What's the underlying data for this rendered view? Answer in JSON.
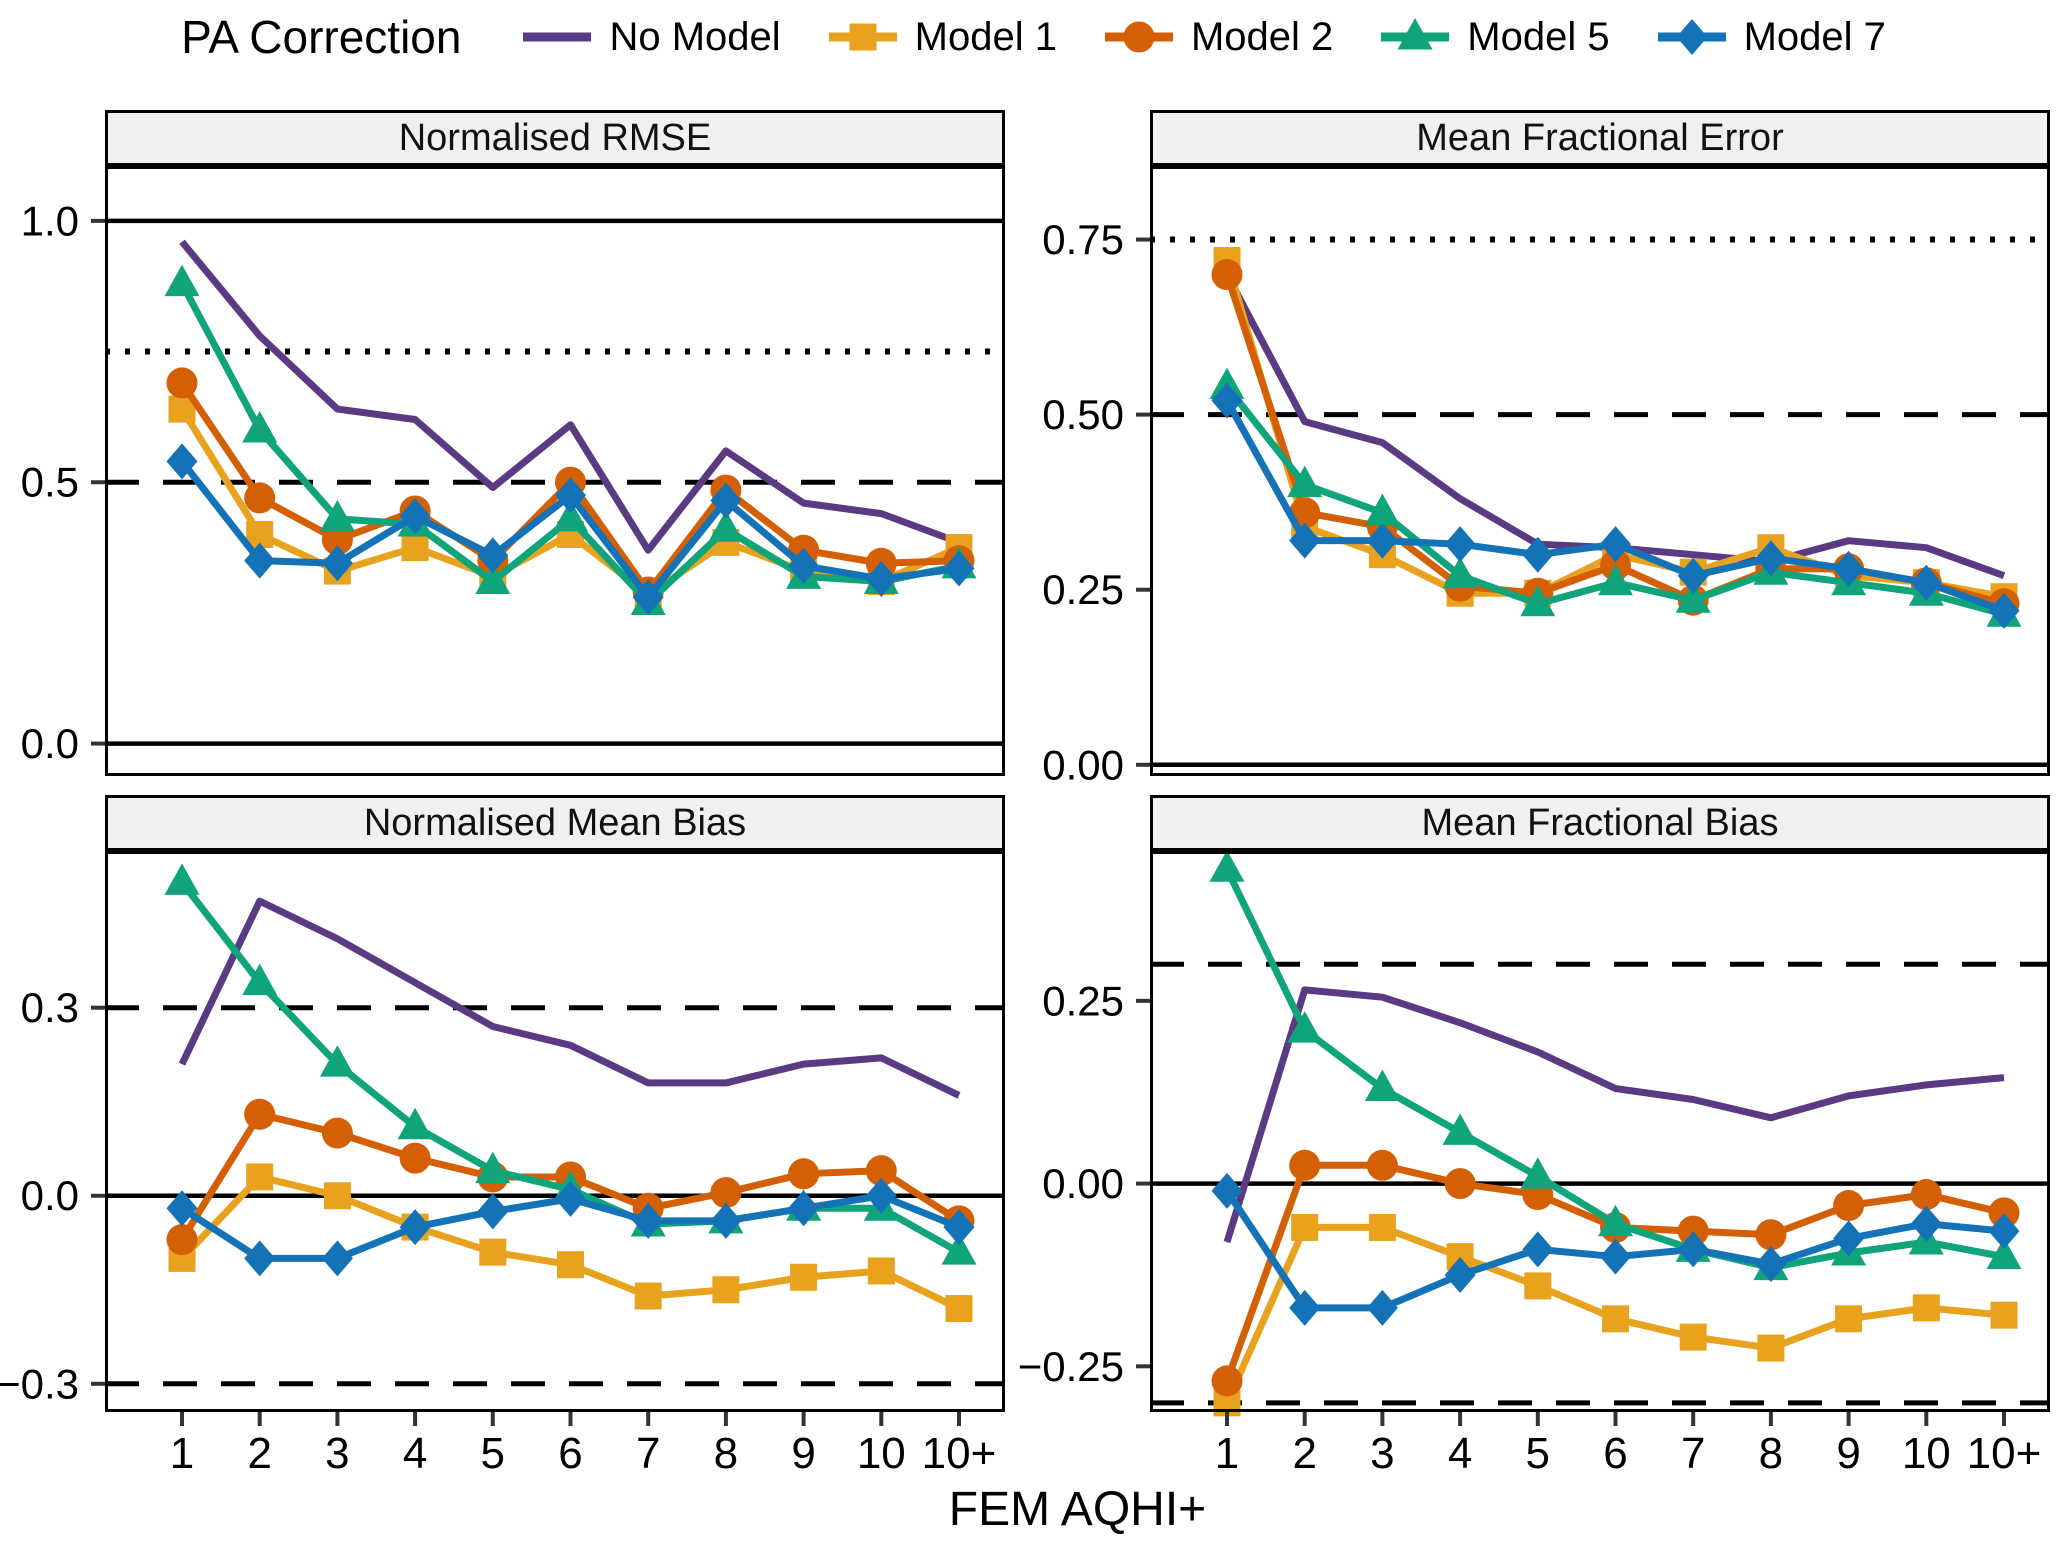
{
  "legend": {
    "title": "PA Correction",
    "items": [
      {
        "label": "No Model",
        "color": "#5A3A82",
        "marker": "line"
      },
      {
        "label": "Model 1",
        "color": "#E9A21E",
        "marker": "square"
      },
      {
        "label": "Model 2",
        "color": "#D55F05",
        "marker": "circle"
      },
      {
        "label": "Model 5",
        "color": "#0FA47A",
        "marker": "triangle"
      },
      {
        "label": "Model 7",
        "color": "#1472B7",
        "marker": "diamond"
      }
    ]
  },
  "axes": {
    "x_title": "FEM AQHI+",
    "x_ticks": [
      "1",
      "2",
      "3",
      "4",
      "5",
      "6",
      "7",
      "8",
      "9",
      "10",
      "10+"
    ]
  },
  "chart_data": [
    {
      "type": "line",
      "title": "Normalised RMSE",
      "ylim": [
        -0.062,
        1.105
      ],
      "grid": false,
      "legend_position": "top",
      "y_ticks": [
        {
          "v": 1.0,
          "label": "1.0"
        },
        {
          "v": 0.5,
          "label": "0.5"
        },
        {
          "v": 0.0,
          "label": "0.0"
        }
      ],
      "ref_lines": [
        {
          "v": 1.0,
          "style": "solid"
        },
        {
          "v": 0.75,
          "style": "dotted"
        },
        {
          "v": 0.5,
          "style": "dashed"
        },
        {
          "v": 0.0,
          "style": "solid"
        }
      ],
      "series": [
        {
          "name": "No Model",
          "values": [
            0.96,
            0.78,
            0.64,
            0.62,
            0.49,
            0.61,
            0.37,
            0.56,
            0.46,
            0.44,
            0.385
          ]
        },
        {
          "name": "Model 1",
          "values": [
            0.64,
            0.4,
            0.33,
            0.375,
            0.32,
            0.4,
            0.285,
            0.385,
            0.33,
            0.31,
            0.375
          ]
        },
        {
          "name": "Model 2",
          "values": [
            0.69,
            0.47,
            0.39,
            0.445,
            0.35,
            0.5,
            0.29,
            0.485,
            0.37,
            0.345,
            0.35
          ]
        },
        {
          "name": "Model 5",
          "values": [
            0.88,
            0.6,
            0.43,
            0.42,
            0.31,
            0.43,
            0.27,
            0.41,
            0.32,
            0.31,
            0.34
          ]
        },
        {
          "name": "Model 7",
          "values": [
            0.54,
            0.35,
            0.345,
            0.435,
            0.36,
            0.475,
            0.28,
            0.465,
            0.34,
            0.315,
            0.335
          ]
        }
      ]
    },
    {
      "type": "line",
      "title": "Mean Fractional Error",
      "ylim": [
        -0.016,
        0.855
      ],
      "grid": false,
      "y_ticks": [
        {
          "v": 0.75,
          "label": "0.75"
        },
        {
          "v": 0.5,
          "label": "0.50"
        },
        {
          "v": 0.25,
          "label": "0.25"
        },
        {
          "v": 0.0,
          "label": "0.00"
        }
      ],
      "ref_lines": [
        {
          "v": 0.75,
          "style": "dotted"
        },
        {
          "v": 0.5,
          "style": "dashed"
        },
        {
          "v": 0.0,
          "style": "solid"
        }
      ],
      "series": [
        {
          "name": "No Model",
          "values": [
            0.7,
            0.49,
            0.46,
            0.38,
            0.315,
            0.31,
            0.3,
            0.29,
            0.32,
            0.31,
            0.27
          ]
        },
        {
          "name": "Model 1",
          "values": [
            0.72,
            0.34,
            0.3,
            0.245,
            0.245,
            0.3,
            0.275,
            0.31,
            0.27,
            0.26,
            0.24
          ]
        },
        {
          "name": "Model 2",
          "values": [
            0.7,
            0.36,
            0.34,
            0.255,
            0.245,
            0.285,
            0.235,
            0.28,
            0.28,
            0.26,
            0.23
          ]
        },
        {
          "name": "Model 5",
          "values": [
            0.54,
            0.4,
            0.36,
            0.27,
            0.23,
            0.26,
            0.235,
            0.275,
            0.26,
            0.245,
            0.215
          ]
        },
        {
          "name": "Model 7",
          "values": [
            0.52,
            0.32,
            0.32,
            0.315,
            0.3,
            0.315,
            0.27,
            0.295,
            0.28,
            0.26,
            0.22
          ]
        }
      ]
    },
    {
      "type": "line",
      "title": "Normalised Mean Bias",
      "ylim": [
        -0.345,
        0.55
      ],
      "grid": false,
      "y_ticks": [
        {
          "v": 0.3,
          "label": "0.3"
        },
        {
          "v": 0.0,
          "label": "0.0"
        },
        {
          "v": -0.3,
          "label": "−0.3"
        }
      ],
      "ref_lines": [
        {
          "v": 0.3,
          "style": "dashed"
        },
        {
          "v": 0.0,
          "style": "solid"
        },
        {
          "v": -0.3,
          "style": "dashed"
        }
      ],
      "series": [
        {
          "name": "No Model",
          "values": [
            0.21,
            0.47,
            0.41,
            0.34,
            0.27,
            0.24,
            0.18,
            0.18,
            0.21,
            0.22,
            0.16
          ]
        },
        {
          "name": "Model 1",
          "values": [
            -0.1,
            0.03,
            0.0,
            -0.05,
            -0.09,
            -0.11,
            -0.16,
            -0.15,
            -0.13,
            -0.12,
            -0.18
          ]
        },
        {
          "name": "Model 2",
          "values": [
            -0.07,
            0.13,
            0.1,
            0.06,
            0.03,
            0.03,
            -0.02,
            0.005,
            0.035,
            0.04,
            -0.04
          ]
        },
        {
          "name": "Model 5",
          "values": [
            0.5,
            0.34,
            0.21,
            0.11,
            0.04,
            0.01,
            -0.045,
            -0.04,
            -0.02,
            -0.02,
            -0.09
          ]
        },
        {
          "name": "Model 7",
          "values": [
            -0.02,
            -0.1,
            -0.1,
            -0.05,
            -0.025,
            -0.005,
            -0.04,
            -0.04,
            -0.02,
            0.0,
            -0.05
          ]
        }
      ]
    },
    {
      "type": "line",
      "title": "Mean Fractional Bias",
      "ylim": [
        -0.3125,
        0.455
      ],
      "grid": false,
      "y_ticks": [
        {
          "v": 0.25,
          "label": "0.25"
        },
        {
          "v": 0.0,
          "label": "0.00"
        },
        {
          "v": -0.25,
          "label": "−0.25"
        }
      ],
      "ref_lines": [
        {
          "v": 0.3,
          "style": "dashed"
        },
        {
          "v": 0.0,
          "style": "solid"
        },
        {
          "v": -0.3,
          "style": "dashed"
        }
      ],
      "series": [
        {
          "name": "No Model",
          "values": [
            -0.08,
            0.265,
            0.255,
            0.22,
            0.18,
            0.13,
            0.115,
            0.09,
            0.12,
            0.135,
            0.145
          ]
        },
        {
          "name": "Model 1",
          "values": [
            -0.3,
            -0.06,
            -0.06,
            -0.1,
            -0.14,
            -0.185,
            -0.21,
            -0.225,
            -0.185,
            -0.17,
            -0.18
          ]
        },
        {
          "name": "Model 2",
          "values": [
            -0.27,
            0.025,
            0.025,
            0.0,
            -0.015,
            -0.06,
            -0.065,
            -0.07,
            -0.03,
            -0.015,
            -0.04
          ]
        },
        {
          "name": "Model 5",
          "values": [
            0.43,
            0.21,
            0.13,
            0.07,
            0.01,
            -0.055,
            -0.09,
            -0.115,
            -0.095,
            -0.08,
            -0.1
          ]
        },
        {
          "name": "Model 7",
          "values": [
            -0.01,
            -0.17,
            -0.17,
            -0.125,
            -0.09,
            -0.1,
            -0.09,
            -0.11,
            -0.075,
            -0.055,
            -0.065
          ]
        }
      ]
    }
  ]
}
